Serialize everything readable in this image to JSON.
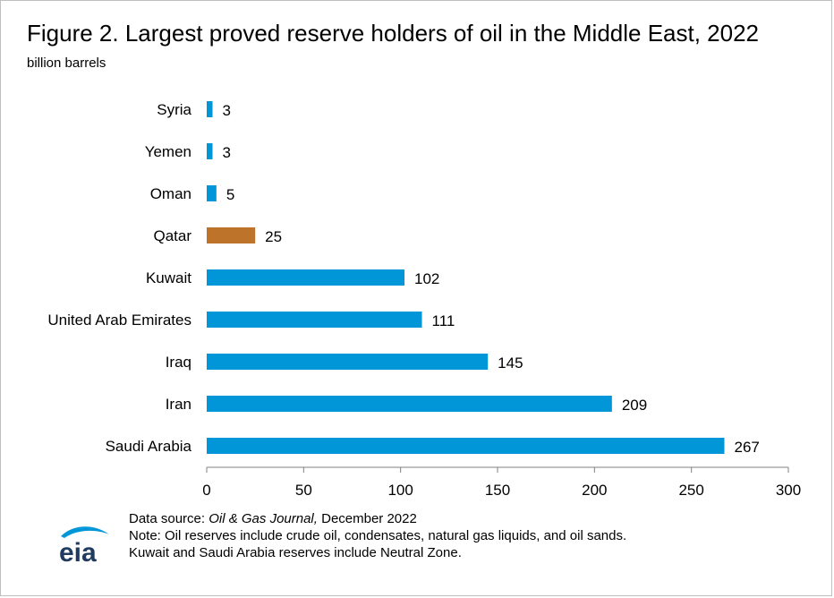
{
  "chart_data": {
    "type": "bar",
    "orientation": "horizontal",
    "title": "Figure 2. Largest proved reserve holders of oil in the Middle East, 2022",
    "ylabel": "billion barrels",
    "categories": [
      "Syria",
      "Yemen",
      "Oman",
      "Qatar",
      "Kuwait",
      "United Arab Emirates",
      "Iraq",
      "Iran",
      "Saudi Arabia"
    ],
    "values": [
      3,
      3,
      5,
      25,
      102,
      111,
      145,
      209,
      267
    ],
    "value_labels": [
      "3",
      "3",
      "5",
      "25",
      "102",
      "111",
      "145",
      "209",
      "267"
    ],
    "highlight_category": "Qatar",
    "colors": {
      "bar": "#0096d7",
      "highlight": "#bd732a",
      "axis": "#808080"
    },
    "xlim": [
      0,
      300
    ],
    "xticks": [
      0,
      50,
      100,
      150,
      200,
      250,
      300
    ],
    "xtick_labels": [
      "0",
      "50",
      "100",
      "150",
      "200",
      "250",
      "300"
    ],
    "grid": false
  },
  "footer": {
    "source_prefix": "Data source: ",
    "source_name": "Oil & Gas Journal,",
    "source_suffix": " December 2022",
    "note1": "Note: Oil reserves include crude oil, condensates, natural gas liquids, and oil sands.",
    "note2": "Kuwait and Saudi Arabia reserves include Neutral Zone."
  },
  "logo": {
    "text": "eia",
    "color": "#0096d7",
    "text_color": "#1f3b5f"
  }
}
